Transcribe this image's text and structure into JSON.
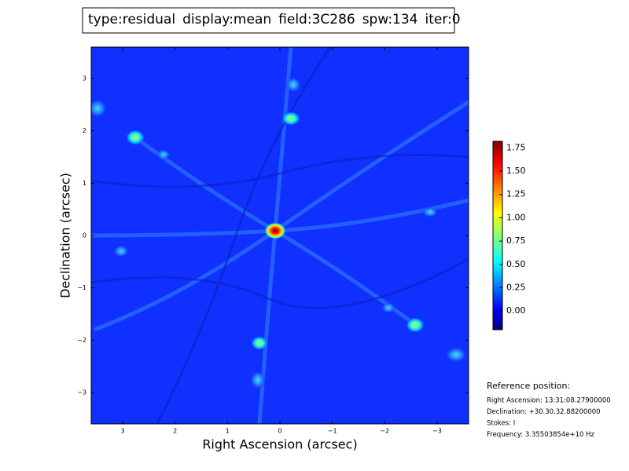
{
  "title_parts": [
    {
      "text": "type:residual",
      "color": "#000000"
    },
    {
      "text": "display:mean",
      "color": "#ff0000"
    },
    {
      "text": "field:3C286",
      "color": "#000000"
    },
    {
      "text": "spw:134",
      "color": "#000000"
    },
    {
      "text": "iter:0",
      "color": "#000000"
    }
  ],
  "chart_data": {
    "type": "image",
    "cmap": "jet",
    "xlabel": "Right Ascension (arcsec)",
    "ylabel": "Declination (arcsec)",
    "xlim": [
      3.6,
      -3.6
    ],
    "ylim": [
      -3.6,
      3.6
    ],
    "xticks": [
      3,
      2,
      1,
      0,
      {
        "value": -1,
        "label": "−1"
      },
      {
        "value": -2,
        "label": "−2"
      },
      {
        "value": -3,
        "label": "−3"
      }
    ],
    "yticks": [
      {
        "value": -3,
        "label": "−3"
      },
      {
        "value": -2,
        "label": "−2"
      },
      {
        "value": -1,
        "label": "−1"
      },
      0,
      1,
      2,
      3
    ],
    "colorbar": {
      "lim": [
        -0.2,
        1.82
      ],
      "ticks": [
        {
          "value": 0,
          "label": "0.00"
        },
        {
          "value": 0.25,
          "label": "0.25"
        },
        {
          "value": 0.5,
          "label": "0.50"
        },
        {
          "value": 0.75,
          "label": "0.75"
        },
        {
          "value": 1,
          "label": "1.00"
        },
        {
          "value": 1.25,
          "label": "1.25"
        },
        {
          "value": 1.5,
          "label": "1.50"
        },
        {
          "value": 1.75,
          "label": "1.75"
        }
      ]
    }
  },
  "reference": {
    "title": "Reference position:",
    "lines": [
      "Right Ascension: 13:31:08.27900000",
      "Declination: +30.30.32.88200000",
      "Stokes: I",
      "Frequency: 3.35503854e+10 Hz"
    ]
  }
}
